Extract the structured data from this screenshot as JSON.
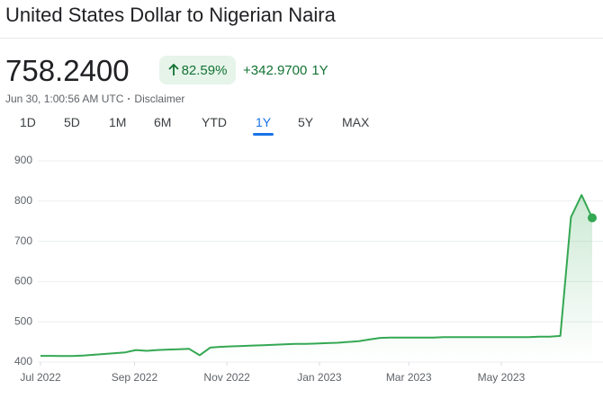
{
  "header": {
    "title": "United States Dollar to Nigerian Naira",
    "price": "758.2400",
    "change_percent": "82.59%",
    "change": "+342.9700",
    "period": "1Y",
    "timestamp": "Jun 30, 1:00:56 AM UTC",
    "disclaimer": "Disclaimer"
  },
  "tabs": [
    "1D",
    "5D",
    "1M",
    "6M",
    "YTD",
    "1Y",
    "5Y",
    "MAX"
  ],
  "selected_tab": "1Y",
  "chart_data": {
    "type": "line",
    "color": "#34a853",
    "values": [
      415.5,
      415.5,
      415,
      415,
      416,
      418,
      420,
      422,
      424,
      430,
      428,
      430,
      431,
      432,
      433,
      417,
      436,
      438,
      439,
      440,
      441,
      442,
      443,
      444,
      445,
      445,
      446,
      447,
      448,
      450,
      452,
      456,
      460,
      461,
      461,
      461,
      461,
      461,
      462,
      462,
      462,
      462,
      462,
      462,
      462,
      462,
      462,
      463,
      463,
      465,
      760,
      815,
      758.24
    ],
    "xlim": [
      0,
      52
    ],
    "xticks": [
      {
        "value": 0,
        "label": "Jul 2022"
      },
      {
        "value": 8.86,
        "label": "Sep 2022"
      },
      {
        "value": 17.57,
        "label": "Nov 2022"
      },
      {
        "value": 26.29,
        "label": "Jan 2023"
      },
      {
        "value": 34.71,
        "label": "Mar 2023"
      },
      {
        "value": 43.43,
        "label": "May 2023"
      }
    ],
    "ylim": [
      400,
      900
    ],
    "yticks": [
      400,
      500,
      600,
      700,
      800,
      900
    ],
    "grid": true
  }
}
